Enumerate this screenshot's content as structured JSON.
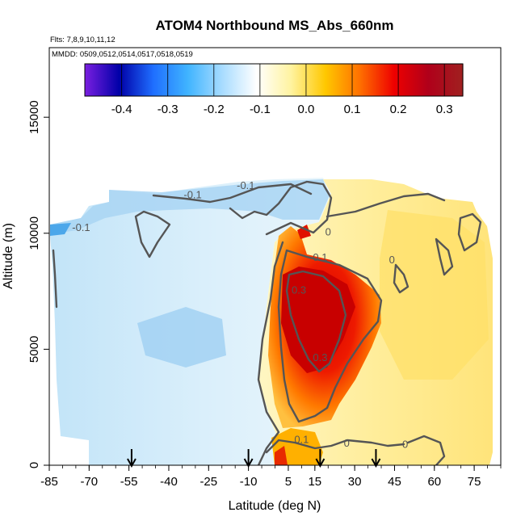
{
  "chart_data": {
    "type": "heatmap",
    "title": "ATOM4 Northbound MS_Abs_660nm",
    "flights_note": "Flts: 7,8,9,10,11,12",
    "dates_note": "MMDD: 0509,0512,0514,0517,0518,0519",
    "xlabel": "Latitude (deg N)",
    "ylabel": "Altitude (m)",
    "xlim": [
      -85,
      85
    ],
    "ylim": [
      0,
      18000
    ],
    "x_tick_labels": [
      "-85",
      "-70",
      "-55",
      "-40",
      "-25",
      "-10",
      "5",
      "15",
      "30",
      "45",
      "60",
      "75"
    ],
    "x_tick_values": [
      -85,
      -70,
      -55,
      -40,
      -25,
      -10,
      5,
      15,
      30,
      45,
      60,
      75
    ],
    "y_tick_labels": [
      "0",
      "5000",
      "10000",
      "15000"
    ],
    "y_tick_values": [
      0,
      5000,
      10000,
      15000
    ],
    "colorbar": {
      "range": [
        -0.48,
        0.34
      ],
      "tick_labels": [
        "-0.4",
        "-0.3",
        "-0.2",
        "-0.1",
        "0.0",
        "0.1",
        "0.2",
        "0.3"
      ],
      "tick_values": [
        -0.4,
        -0.3,
        -0.2,
        -0.1,
        0.0,
        0.1,
        0.2,
        0.3
      ],
      "colors": [
        "#7a1fe0",
        "#0000a8",
        "#1f6fff",
        "#40b4ff",
        "#a8dcff",
        "#ffffff",
        "#fff3a0",
        "#ffc800",
        "#ff7000",
        "#ee0000",
        "#b0001a",
        "#a02020"
      ]
    },
    "contour_labels": [
      {
        "text": "-0.1",
        "x": -31,
        "y": 11500
      },
      {
        "text": "-0.1",
        "x": -11,
        "y": 11900
      },
      {
        "text": "-0.1",
        "x": -73,
        "y": 10100
      },
      {
        "text": "0",
        "x": 20,
        "y": 9900
      },
      {
        "text": "0.1",
        "x": 17,
        "y": 8800
      },
      {
        "text": "0.3",
        "x": 9,
        "y": 7400
      },
      {
        "text": "0.3",
        "x": 17,
        "y": 4500
      },
      {
        "text": "0",
        "x": 44,
        "y": 8700
      },
      {
        "text": "0.1",
        "x": 10,
        "y": 950
      },
      {
        "text": "0",
        "x": 27,
        "y": 800
      },
      {
        "text": "0",
        "x": 49,
        "y": 750
      }
    ],
    "profile_markers_lat": [
      -54,
      -10,
      17,
      38
    ]
  }
}
